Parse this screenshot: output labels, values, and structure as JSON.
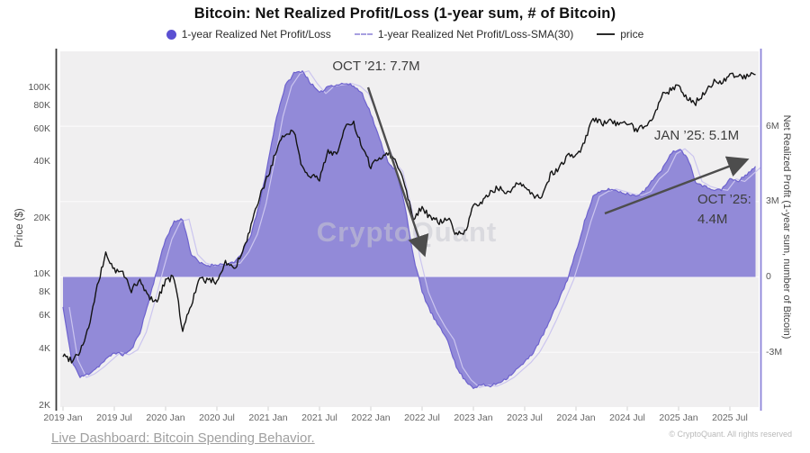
{
  "title": "Bitcoin: Net Realized Profit/Loss (1-year sum, # of Bitcoin)",
  "legend": {
    "items": [
      {
        "label": "1-year Realized Net Profit/Loss",
        "marker": "dot",
        "color": "#5b50d2"
      },
      {
        "label": "1-year Realized Net Profit/Loss-SMA(30)",
        "marker": "dashed-line",
        "color": "#a79fe0"
      },
      {
        "label": "price",
        "marker": "line",
        "color": "#1a1a1a"
      }
    ]
  },
  "watermark": "CryptoQuant",
  "annotations": {
    "oct21": "OCT ’21: 7.7M",
    "jan25": "JAN ’25: 5.1M",
    "oct25_l1": "OCT ’25:",
    "oct25_l2": "4.4M"
  },
  "footer": {
    "link_text": "Live Dashboard: Bitcoin Spending Behavior.",
    "copyright": "© CryptoQuant. All rights reserved"
  },
  "chart_data": {
    "type": "line",
    "title": "Bitcoin: Net Realized Profit/Loss (1-year sum, # of Bitcoin)",
    "x_start": "2019-01",
    "x_end": "2025-10",
    "x_interval": "month",
    "x_ticks": [
      "2019 Jan",
      "2019 Jul",
      "2020 Jan",
      "2020 Jul",
      "2021 Jan",
      "2021 Jul",
      "2022 Jan",
      "2022 Jul",
      "2023 Jan",
      "2023 Jul",
      "2024 Jan",
      "2024 Jul",
      "2025 Jan",
      "2025 Jul"
    ],
    "left_axis": {
      "label": "Price ($)",
      "scale": "log",
      "ticks": [
        "2K",
        "4K",
        "6K",
        "8K",
        "10K",
        "20K",
        "40K",
        "60K",
        "80K",
        "100K"
      ]
    },
    "right_axis": {
      "label": "Net Realized Profit (1-year sum, number of Bitcoin)",
      "scale": "linear",
      "ticks": [
        "-3M",
        "0",
        "3M",
        "6M"
      ]
    },
    "grid": "horizontal-faint",
    "legend_position": "top-center",
    "plot_background": "#f0eff0",
    "series": [
      {
        "name": "1-year Realized Net Profit/Loss",
        "type": "area",
        "axis": "right",
        "unit": "million BTC",
        "color": "#928ad8",
        "monthly_values": [
          -1.2,
          -3.3,
          -4.0,
          -3.85,
          -3.6,
          -3.3,
          -3.0,
          -3.1,
          -2.9,
          -2.2,
          -1.0,
          0.3,
          1.5,
          2.2,
          2.3,
          0.9,
          0.55,
          0.45,
          0.5,
          0.5,
          0.55,
          1.0,
          1.7,
          2.9,
          4.6,
          6.4,
          7.6,
          8.1,
          8.2,
          7.7,
          7.3,
          7.6,
          7.65,
          7.7,
          7.6,
          7.3,
          6.5,
          5.5,
          4.6,
          4.2,
          2.8,
          0.8,
          -0.6,
          -1.4,
          -2.0,
          -2.5,
          -3.6,
          -4.1,
          -4.4,
          -4.3,
          -4.35,
          -4.2,
          -4.0,
          -3.7,
          -3.4,
          -3.0,
          -2.4,
          -1.7,
          -0.9,
          -0.1,
          1.0,
          2.2,
          3.2,
          3.4,
          3.5,
          3.4,
          3.3,
          3.25,
          3.4,
          3.9,
          4.2,
          4.9,
          5.1,
          4.8,
          3.8,
          3.6,
          3.5,
          3.45,
          3.9,
          3.8,
          4.1,
          4.4
        ]
      },
      {
        "name": "1-year Realized Net Profit/Loss-SMA(30)",
        "type": "line",
        "axis": "right",
        "unit": "million BTC",
        "color": "#cbc5ef"
      },
      {
        "name": "price",
        "type": "line",
        "axis": "left",
        "unit": "thousand USD",
        "color": "#141414",
        "monthly_values": [
          3.7,
          3.5,
          3.9,
          5.2,
          8.5,
          13.0,
          10.5,
          10.2,
          8.3,
          9.2,
          7.6,
          7.2,
          9.4,
          9.6,
          5.0,
          7.0,
          9.4,
          9.3,
          9.2,
          11.7,
          10.7,
          13.0,
          18.0,
          26.0,
          34,
          46,
          57,
          59,
          37,
          34,
          32,
          46,
          44,
          61,
          64,
          47,
          38,
          42,
          45,
          40,
          30,
          20,
          23,
          20,
          19,
          20,
          16.5,
          16.7,
          23,
          24,
          28,
          29,
          27,
          30,
          29.5,
          26,
          26.5,
          34,
          37,
          43,
          42.5,
          51,
          68,
          64,
          68,
          62,
          65,
          59,
          63,
          69,
          91,
          96,
          104,
          86,
          83,
          94,
          106,
          107,
          117,
          113,
          114,
          117
        ]
      }
    ],
    "callouts": [
      {
        "label": "OCT ’21",
        "value_million_btc": 7.7
      },
      {
        "label": "JAN ’25",
        "value_million_btc": 5.1
      },
      {
        "label": "OCT ’25",
        "value_million_btc": 4.4
      }
    ]
  }
}
